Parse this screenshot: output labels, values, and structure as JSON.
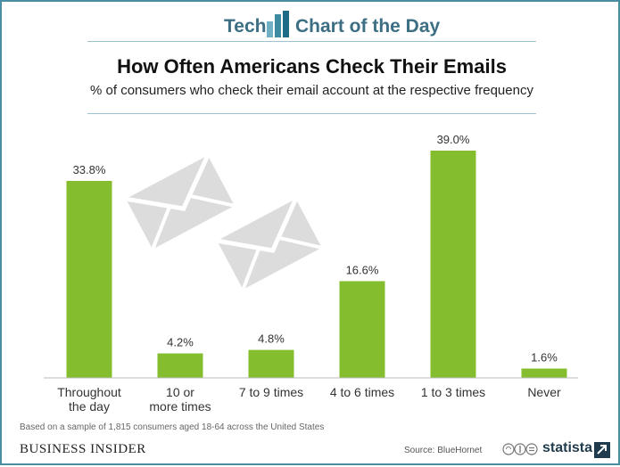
{
  "header": {
    "left_word": "Tech",
    "right_words": "Chart of the Day"
  },
  "chart_data": {
    "type": "bar",
    "title": "How Often Americans Check Their Emails",
    "subtitle": "% of consumers who check their email account at the respective frequency",
    "categories": [
      [
        "Throughout",
        "the day"
      ],
      [
        "10 or",
        "more times"
      ],
      [
        "7 to 9 times"
      ],
      [
        "4 to 6 times"
      ],
      [
        "1 to 3 times"
      ],
      [
        "Never"
      ]
    ],
    "values": [
      33.8,
      4.2,
      4.8,
      16.6,
      39.0,
      1.6
    ],
    "value_labels": [
      "33.8%",
      "4.2%",
      "4.8%",
      "16.6%",
      "39.0%",
      "1.6%"
    ],
    "ylim": [
      0,
      39.0
    ],
    "grid": false,
    "bar_color": "#84bd2d"
  },
  "footer": {
    "note": "Based on a sample of 1,815 consumers aged 18-64 across the United States",
    "brand": "BUSINESS INSIDER",
    "source": "Source: BlueHornet",
    "statista": "statista"
  },
  "colors": {
    "frame": "#4a8ea3",
    "header_text": "#3d6f84",
    "envelope": "#dedede"
  }
}
